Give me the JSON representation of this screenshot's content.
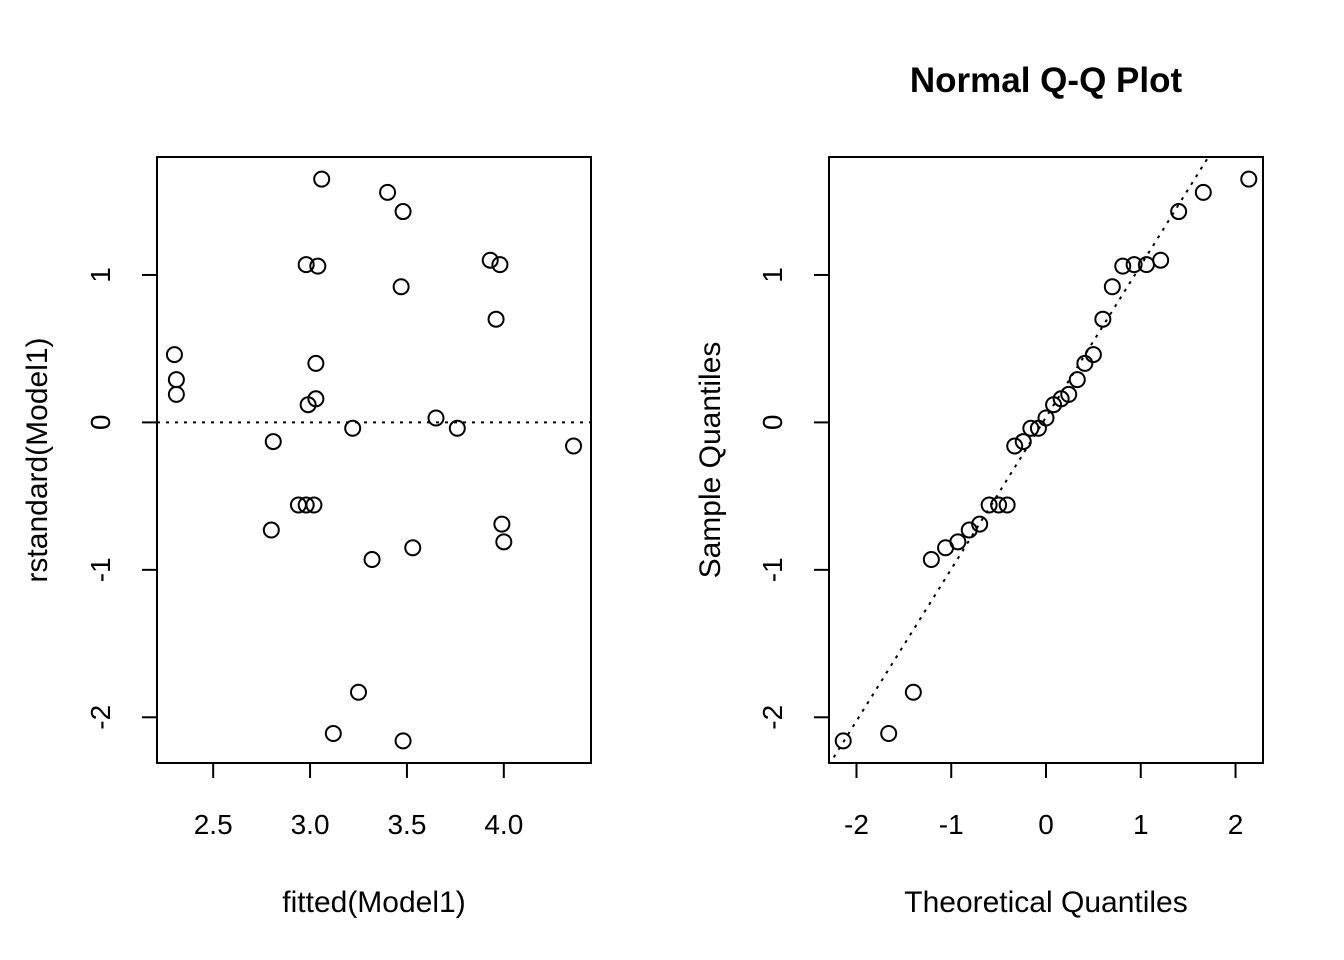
{
  "chart_data": [
    {
      "type": "scatter",
      "title": "",
      "xlabel": "fitted(Model1)",
      "ylabel": "rstandard(Model1)",
      "xlim": [
        2.21,
        4.45
      ],
      "ylim": [
        -2.31,
        1.8
      ],
      "xticks": [
        2.5,
        3.0,
        3.5,
        4.0
      ],
      "xtick_labels": [
        "2.5",
        "3.0",
        "3.5",
        "4.0"
      ],
      "yticks": [
        -2,
        -1,
        0,
        1
      ],
      "ytick_labels": [
        "-2",
        "-1",
        "0",
        "1"
      ],
      "hline": 0,
      "points": [
        [
          2.3,
          0.46
        ],
        [
          2.31,
          0.29
        ],
        [
          2.31,
          0.19
        ],
        [
          2.81,
          -0.13
        ],
        [
          2.8,
          -0.73
        ],
        [
          2.94,
          -0.56
        ],
        [
          2.98,
          -0.56
        ],
        [
          3.02,
          -0.56
        ],
        [
          2.98,
          1.07
        ],
        [
          3.04,
          1.06
        ],
        [
          3.06,
          1.65
        ],
        [
          2.99,
          0.12
        ],
        [
          3.03,
          0.16
        ],
        [
          3.03,
          0.4
        ],
        [
          3.12,
          -2.11
        ],
        [
          3.22,
          -0.04
        ],
        [
          3.25,
          -1.83
        ],
        [
          3.32,
          -0.93
        ],
        [
          3.4,
          1.56
        ],
        [
          3.47,
          0.92
        ],
        [
          3.48,
          1.43
        ],
        [
          3.48,
          -2.16
        ],
        [
          3.53,
          -0.85
        ],
        [
          3.65,
          0.03
        ],
        [
          3.76,
          -0.04
        ],
        [
          3.93,
          1.1
        ],
        [
          3.96,
          0.7
        ],
        [
          3.98,
          1.07
        ],
        [
          3.99,
          -0.69
        ],
        [
          4.0,
          -0.81
        ],
        [
          4.36,
          -0.16
        ]
      ]
    },
    {
      "type": "scatter",
      "title": "Normal Q-Q Plot",
      "xlabel": "Theoretical Quantiles",
      "ylabel": "Sample Quantiles",
      "xlim": [
        -2.29,
        2.29
      ],
      "ylim": [
        -2.31,
        1.8
      ],
      "xticks": [
        -2,
        -1,
        0,
        1,
        2
      ],
      "xtick_labels": [
        "-2",
        "-1",
        "0",
        "1",
        "2"
      ],
      "yticks": [
        -2,
        -1,
        0,
        1
      ],
      "ytick_labels": [
        "-2",
        "-1",
        "0",
        "1"
      ],
      "ref_line": {
        "intercept": 0.035,
        "slope": 1.03
      },
      "points": [
        [
          -2.14,
          -2.16
        ],
        [
          -1.66,
          -2.11
        ],
        [
          -1.4,
          -1.83
        ],
        [
          -1.21,
          -0.93
        ],
        [
          -1.06,
          -0.85
        ],
        [
          -0.93,
          -0.81
        ],
        [
          -0.81,
          -0.73
        ],
        [
          -0.7,
          -0.69
        ],
        [
          -0.6,
          -0.56
        ],
        [
          -0.5,
          -0.56
        ],
        [
          -0.41,
          -0.56
        ],
        [
          -0.33,
          -0.16
        ],
        [
          -0.24,
          -0.13
        ],
        [
          -0.16,
          -0.04
        ],
        [
          -0.08,
          -0.04
        ],
        [
          0.0,
          0.03
        ],
        [
          0.08,
          0.12
        ],
        [
          0.16,
          0.16
        ],
        [
          0.24,
          0.19
        ],
        [
          0.33,
          0.29
        ],
        [
          0.41,
          0.4
        ],
        [
          0.5,
          0.46
        ],
        [
          0.6,
          0.7
        ],
        [
          0.7,
          0.92
        ],
        [
          0.81,
          1.06
        ],
        [
          0.93,
          1.07
        ],
        [
          1.06,
          1.07
        ],
        [
          1.21,
          1.1
        ],
        [
          1.4,
          1.43
        ],
        [
          1.66,
          1.56
        ],
        [
          2.14,
          1.65
        ]
      ]
    }
  ]
}
